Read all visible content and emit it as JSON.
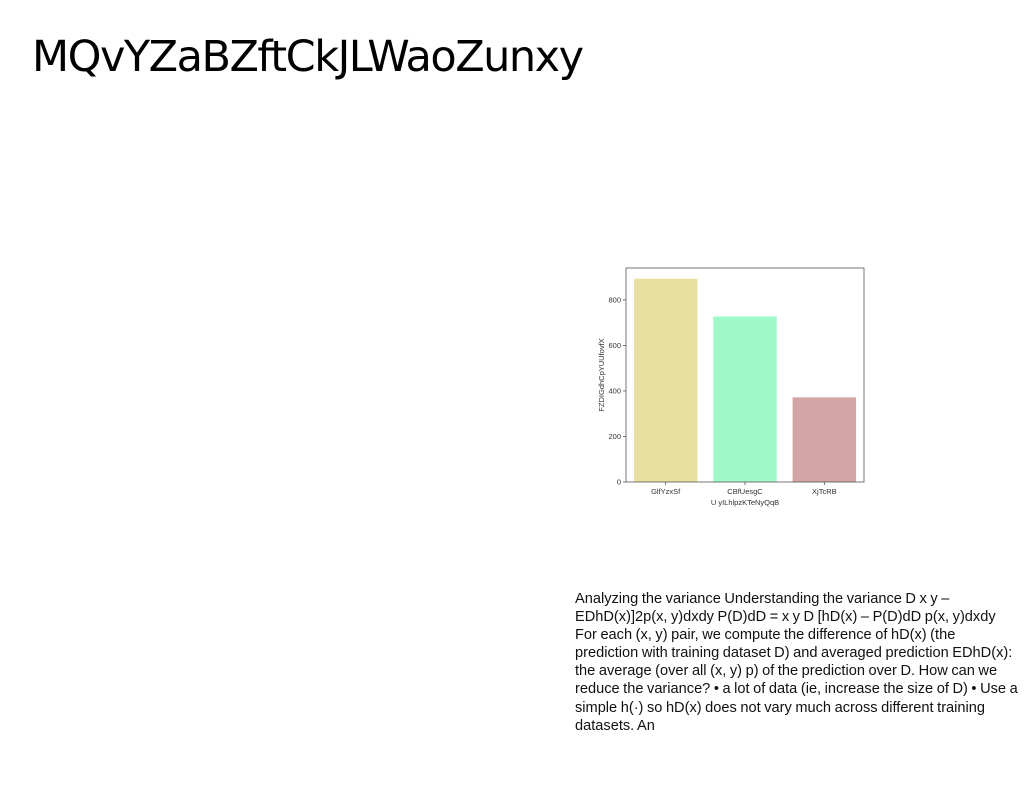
{
  "slide": {
    "title": "MQvYZaBZftCkJLWaoZunxy",
    "body_text": "Analyzing the variance Understanding the variance  D  x  y – EDhD(x)]2p(x, y)dxdy P(D)dD =  x  y   D [hD(x) – P(D)dD  p(x, y)dxdy For each (x, y) pair, we compute the difference of hD(x) (the prediction with training dataset D) and averaged prediction EDhD(x): the average (over all (x, y)  p) of the prediction over D. How can we reduce the variance? • a lot of data (ie, increase the size of D) • Use a simple h(·) so hD(x) does not vary much across different training datasets. An"
  },
  "chart_data": {
    "type": "bar",
    "categories": [
      "GlfYzxSf",
      "CBfUesgC",
      "XjTcRB"
    ],
    "values": [
      893,
      727,
      372
    ],
    "bar_colors": [
      "#e8e0a0",
      "#9ef9c6",
      "#d3a5a5"
    ],
    "xlabel": "U yILhlpzKTeNyQqB",
    "ylabel": "FZDIGdhCpYUUfovfX",
    "ylim": [
      0,
      940
    ],
    "yticks": [
      0,
      200,
      400,
      600,
      800
    ],
    "grid": false,
    "legend": "none"
  }
}
